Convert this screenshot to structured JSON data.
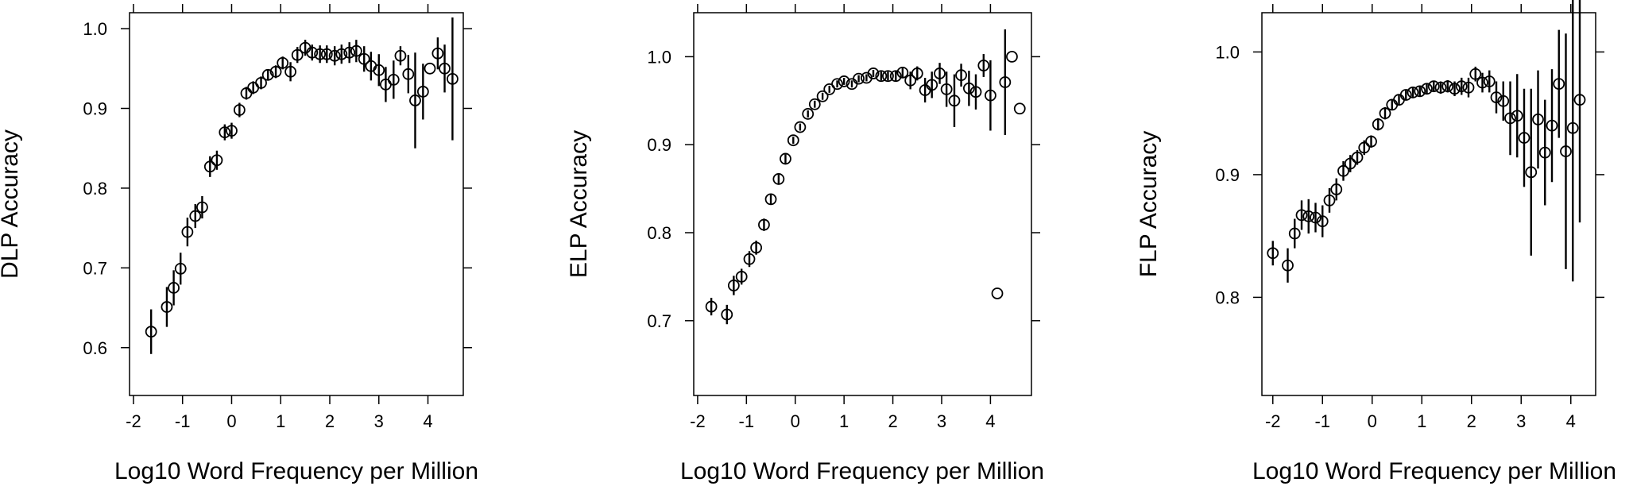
{
  "chart_data": [
    {
      "type": "scatter",
      "xlabel": "Log10 Word Frequency per Million",
      "ylabel": "DLP Accuracy",
      "xlim": [
        -2.08,
        4.72
      ],
      "ylim": [
        0.54,
        1.02
      ],
      "xticks": [
        -2,
        -1,
        0,
        1,
        2,
        3,
        4
      ],
      "xtick_labels": [
        "-2",
        "-1",
        "0",
        "1",
        "2",
        "3",
        "4"
      ],
      "yticks": [
        0.6,
        0.7,
        0.8,
        0.9,
        1.0
      ],
      "ytick_labels": [
        "0.6",
        "0.7",
        "0.8",
        "0.9",
        "1.0"
      ],
      "points": [
        {
          "x": -1.64,
          "y": 0.62,
          "err": 0.028
        },
        {
          "x": -1.32,
          "y": 0.651,
          "err": 0.025
        },
        {
          "x": -1.18,
          "y": 0.675,
          "err": 0.022
        },
        {
          "x": -1.04,
          "y": 0.699,
          "err": 0.02
        },
        {
          "x": -0.9,
          "y": 0.745,
          "err": 0.018
        },
        {
          "x": -0.74,
          "y": 0.765,
          "err": 0.015
        },
        {
          "x": -0.6,
          "y": 0.776,
          "err": 0.014
        },
        {
          "x": -0.44,
          "y": 0.827,
          "err": 0.013
        },
        {
          "x": -0.3,
          "y": 0.835,
          "err": 0.012
        },
        {
          "x": -0.14,
          "y": 0.87,
          "err": 0.01
        },
        {
          "x": 0.0,
          "y": 0.872,
          "err": 0.01
        },
        {
          "x": 0.16,
          "y": 0.898,
          "err": 0.009
        },
        {
          "x": 0.3,
          "y": 0.919,
          "err": 0.008
        },
        {
          "x": 0.44,
          "y": 0.926,
          "err": 0.008
        },
        {
          "x": 0.6,
          "y": 0.932,
          "err": 0.008
        },
        {
          "x": 0.74,
          "y": 0.942,
          "err": 0.007
        },
        {
          "x": 0.9,
          "y": 0.946,
          "err": 0.008
        },
        {
          "x": 1.04,
          "y": 0.957,
          "err": 0.008
        },
        {
          "x": 1.2,
          "y": 0.946,
          "err": 0.012
        },
        {
          "x": 1.34,
          "y": 0.967,
          "err": 0.01
        },
        {
          "x": 1.5,
          "y": 0.976,
          "err": 0.01
        },
        {
          "x": 1.64,
          "y": 0.97,
          "err": 0.01
        },
        {
          "x": 1.8,
          "y": 0.968,
          "err": 0.011
        },
        {
          "x": 1.94,
          "y": 0.968,
          "err": 0.011
        },
        {
          "x": 2.1,
          "y": 0.966,
          "err": 0.012
        },
        {
          "x": 2.24,
          "y": 0.968,
          "err": 0.012
        },
        {
          "x": 2.4,
          "y": 0.97,
          "err": 0.013
        },
        {
          "x": 2.54,
          "y": 0.972,
          "err": 0.014
        },
        {
          "x": 2.7,
          "y": 0.962,
          "err": 0.016
        },
        {
          "x": 2.84,
          "y": 0.953,
          "err": 0.018
        },
        {
          "x": 3.0,
          "y": 0.948,
          "err": 0.02
        },
        {
          "x": 3.14,
          "y": 0.93,
          "err": 0.022
        },
        {
          "x": 3.3,
          "y": 0.936,
          "err": 0.024
        },
        {
          "x": 3.44,
          "y": 0.966,
          "err": 0.012
        },
        {
          "x": 3.6,
          "y": 0.943,
          "err": 0.024
        },
        {
          "x": 3.74,
          "y": 0.91,
          "err": 0.06
        },
        {
          "x": 3.9,
          "y": 0.921,
          "err": 0.035
        },
        {
          "x": 4.04,
          "y": 0.95,
          "err": 0.0
        },
        {
          "x": 4.2,
          "y": 0.969,
          "err": 0.02
        },
        {
          "x": 4.34,
          "y": 0.95,
          "err": 0.03
        },
        {
          "x": 4.5,
          "y": 0.937,
          "err": 0.077
        }
      ]
    },
    {
      "type": "scatter",
      "xlabel": "Log10 Word Frequency per Million",
      "ylabel": "ELP Accuracy",
      "xlim": [
        -2.08,
        4.84
      ],
      "ylim": [
        0.615,
        1.05
      ],
      "xticks": [
        -2,
        -1,
        0,
        1,
        2,
        3,
        4
      ],
      "xtick_labels": [
        "-2",
        "-1",
        "0",
        "1",
        "2",
        "3",
        "4"
      ],
      "yticks": [
        0.7,
        0.8,
        0.9,
        1.0
      ],
      "ytick_labels": [
        "0.7",
        "0.8",
        "0.9",
        "1.0"
      ],
      "points": [
        {
          "x": -1.72,
          "y": 0.716,
          "err": 0.01
        },
        {
          "x": -1.4,
          "y": 0.707,
          "err": 0.011
        },
        {
          "x": -1.26,
          "y": 0.74,
          "err": 0.011
        },
        {
          "x": -1.1,
          "y": 0.75,
          "err": 0.009
        },
        {
          "x": -0.94,
          "y": 0.77,
          "err": 0.009
        },
        {
          "x": -0.8,
          "y": 0.783,
          "err": 0.008
        },
        {
          "x": -0.64,
          "y": 0.809,
          "err": 0.007
        },
        {
          "x": -0.5,
          "y": 0.838,
          "err": 0.006
        },
        {
          "x": -0.34,
          "y": 0.861,
          "err": 0.005
        },
        {
          "x": -0.2,
          "y": 0.884,
          "err": 0.005
        },
        {
          "x": -0.04,
          "y": 0.905,
          "err": 0.004
        },
        {
          "x": 0.1,
          "y": 0.92,
          "err": 0.004
        },
        {
          "x": 0.26,
          "y": 0.935,
          "err": 0.004
        },
        {
          "x": 0.4,
          "y": 0.946,
          "err": 0.004
        },
        {
          "x": 0.56,
          "y": 0.955,
          "err": 0.004
        },
        {
          "x": 0.7,
          "y": 0.963,
          "err": 0.004
        },
        {
          "x": 0.86,
          "y": 0.969,
          "err": 0.004
        },
        {
          "x": 1.0,
          "y": 0.972,
          "err": 0.004
        },
        {
          "x": 1.16,
          "y": 0.969,
          "err": 0.004
        },
        {
          "x": 1.3,
          "y": 0.975,
          "err": 0.004
        },
        {
          "x": 1.46,
          "y": 0.976,
          "err": 0.004
        },
        {
          "x": 1.6,
          "y": 0.981,
          "err": 0.004
        },
        {
          "x": 1.76,
          "y": 0.978,
          "err": 0.005
        },
        {
          "x": 1.9,
          "y": 0.978,
          "err": 0.005
        },
        {
          "x": 2.06,
          "y": 0.978,
          "err": 0.006
        },
        {
          "x": 2.2,
          "y": 0.982,
          "err": 0.006
        },
        {
          "x": 2.36,
          "y": 0.973,
          "err": 0.01
        },
        {
          "x": 2.5,
          "y": 0.981,
          "err": 0.008
        },
        {
          "x": 2.66,
          "y": 0.962,
          "err": 0.014
        },
        {
          "x": 2.8,
          "y": 0.968,
          "err": 0.015
        },
        {
          "x": 2.96,
          "y": 0.981,
          "err": 0.012
        },
        {
          "x": 3.1,
          "y": 0.963,
          "err": 0.02
        },
        {
          "x": 3.26,
          "y": 0.95,
          "err": 0.03
        },
        {
          "x": 3.4,
          "y": 0.979,
          "err": 0.013
        },
        {
          "x": 3.56,
          "y": 0.964,
          "err": 0.02
        },
        {
          "x": 3.7,
          "y": 0.96,
          "err": 0.02
        },
        {
          "x": 3.86,
          "y": 0.99,
          "err": 0.013
        },
        {
          "x": 4.0,
          "y": 0.956,
          "err": 0.04
        },
        {
          "x": 4.14,
          "y": 0.731,
          "err": 0.0
        },
        {
          "x": 4.3,
          "y": 0.971,
          "err": 0.06
        },
        {
          "x": 4.44,
          "y": 1.0,
          "err": 0.0
        },
        {
          "x": 4.6,
          "y": 0.941,
          "err": 0.0
        }
      ]
    },
    {
      "type": "scatter",
      "xlabel": "Log10 Word Frequency per Million",
      "ylabel": "FLP Accuracy",
      "xlim": [
        -2.22,
        4.5
      ],
      "ylim": [
        0.72,
        1.032
      ],
      "xticks": [
        -2,
        -1,
        0,
        1,
        2,
        3,
        4
      ],
      "xtick_labels": [
        "-2",
        "-1",
        "0",
        "1",
        "2",
        "3",
        "4"
      ],
      "yticks": [
        0.8,
        0.9,
        1.0
      ],
      "ytick_labels": [
        "0.8",
        "0.9",
        "1.0"
      ],
      "points": [
        {
          "x": -2.0,
          "y": 0.836,
          "err": 0.01
        },
        {
          "x": -1.7,
          "y": 0.826,
          "err": 0.014
        },
        {
          "x": -1.56,
          "y": 0.852,
          "err": 0.012
        },
        {
          "x": -1.42,
          "y": 0.867,
          "err": 0.012
        },
        {
          "x": -1.28,
          "y": 0.866,
          "err": 0.014
        },
        {
          "x": -1.14,
          "y": 0.865,
          "err": 0.012
        },
        {
          "x": -1.0,
          "y": 0.862,
          "err": 0.013
        },
        {
          "x": -0.86,
          "y": 0.879,
          "err": 0.01
        },
        {
          "x": -0.72,
          "y": 0.888,
          "err": 0.009
        },
        {
          "x": -0.58,
          "y": 0.903,
          "err": 0.008
        },
        {
          "x": -0.44,
          "y": 0.909,
          "err": 0.007
        },
        {
          "x": -0.3,
          "y": 0.914,
          "err": 0.006
        },
        {
          "x": -0.16,
          "y": 0.922,
          "err": 0.006
        },
        {
          "x": -0.02,
          "y": 0.927,
          "err": 0.005
        },
        {
          "x": 0.12,
          "y": 0.941,
          "err": 0.005
        },
        {
          "x": 0.26,
          "y": 0.95,
          "err": 0.005
        },
        {
          "x": 0.4,
          "y": 0.957,
          "err": 0.004
        },
        {
          "x": 0.54,
          "y": 0.961,
          "err": 0.004
        },
        {
          "x": 0.68,
          "y": 0.965,
          "err": 0.004
        },
        {
          "x": 0.82,
          "y": 0.967,
          "err": 0.004
        },
        {
          "x": 0.96,
          "y": 0.968,
          "err": 0.004
        },
        {
          "x": 1.1,
          "y": 0.97,
          "err": 0.004
        },
        {
          "x": 1.24,
          "y": 0.972,
          "err": 0.004
        },
        {
          "x": 1.38,
          "y": 0.971,
          "err": 0.005
        },
        {
          "x": 1.52,
          "y": 0.972,
          "err": 0.005
        },
        {
          "x": 1.66,
          "y": 0.97,
          "err": 0.006
        },
        {
          "x": 1.8,
          "y": 0.972,
          "err": 0.007
        },
        {
          "x": 1.94,
          "y": 0.971,
          "err": 0.008
        },
        {
          "x": 2.08,
          "y": 0.982,
          "err": 0.006
        },
        {
          "x": 2.22,
          "y": 0.975,
          "err": 0.008
        },
        {
          "x": 2.36,
          "y": 0.976,
          "err": 0.009
        },
        {
          "x": 2.5,
          "y": 0.963,
          "err": 0.013
        },
        {
          "x": 2.64,
          "y": 0.96,
          "err": 0.016
        },
        {
          "x": 2.78,
          "y": 0.946,
          "err": 0.03
        },
        {
          "x": 2.92,
          "y": 0.948,
          "err": 0.034
        },
        {
          "x": 3.06,
          "y": 0.93,
          "err": 0.04
        },
        {
          "x": 3.2,
          "y": 0.902,
          "err": 0.068
        },
        {
          "x": 3.34,
          "y": 0.945,
          "err": 0.04
        },
        {
          "x": 3.48,
          "y": 0.918,
          "err": 0.043
        },
        {
          "x": 3.62,
          "y": 0.94,
          "err": 0.046
        },
        {
          "x": 3.76,
          "y": 0.974,
          "err": 0.044
        },
        {
          "x": 3.9,
          "y": 0.919,
          "err": 0.096
        },
        {
          "x": 4.04,
          "y": 0.938,
          "err": 0.125
        },
        {
          "x": 4.18,
          "y": 0.961,
          "err": 0.1
        }
      ]
    }
  ]
}
